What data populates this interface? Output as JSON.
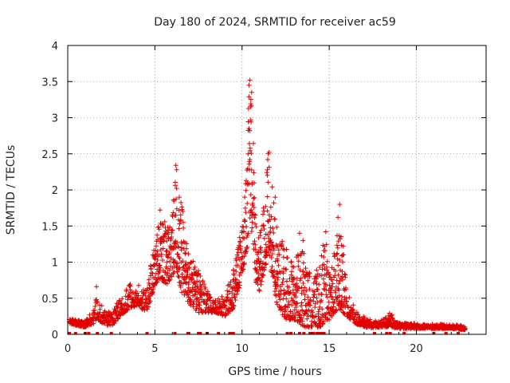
{
  "chart_data": {
    "type": "scatter",
    "title": "Day 180 of 2024, SRMTID for receiver ac59",
    "xlabel": "GPS time / hours",
    "ylabel": "SRMTID / TECUs",
    "xlim": [
      0,
      24
    ],
    "ylim": [
      0,
      4
    ],
    "x_ticks": [
      0,
      5,
      10,
      15,
      20
    ],
    "x_tick_labels": [
      "0",
      "5",
      "10",
      "15",
      "20"
    ],
    "y_ticks": [
      0,
      0.5,
      1,
      1.5,
      2,
      2.5,
      3,
      3.5,
      4
    ],
    "y_tick_labels": [
      "0",
      "0.5",
      "1",
      "1.5",
      "2",
      "2.5",
      "3",
      "3.5",
      "4"
    ],
    "grid": true,
    "marker": "+",
    "color": "#e00000",
    "series": [
      {
        "name": "SRMTID",
        "envelope": [
          [
            0.1,
            0.15,
            0.22
          ],
          [
            0.5,
            0.12,
            0.2
          ],
          [
            1.0,
            0.1,
            0.18
          ],
          [
            1.5,
            0.15,
            0.4
          ],
          [
            1.7,
            0.2,
            0.66
          ],
          [
            2.0,
            0.15,
            0.35
          ],
          [
            2.5,
            0.1,
            0.3
          ],
          [
            3.0,
            0.25,
            0.5
          ],
          [
            3.5,
            0.35,
            0.7
          ],
          [
            4.0,
            0.4,
            0.72
          ],
          [
            4.5,
            0.3,
            0.6
          ],
          [
            4.8,
            0.5,
            1.05
          ],
          [
            5.0,
            0.7,
            1.2
          ],
          [
            5.3,
            0.75,
            1.7
          ],
          [
            5.7,
            0.7,
            1.6
          ],
          [
            6.0,
            0.8,
            1.75
          ],
          [
            6.2,
            0.9,
            2.34
          ],
          [
            6.5,
            0.6,
            1.9
          ],
          [
            7.0,
            0.4,
            1.1
          ],
          [
            7.5,
            0.3,
            0.9
          ],
          [
            8.0,
            0.3,
            0.6
          ],
          [
            8.5,
            0.3,
            0.5
          ],
          [
            9.0,
            0.25,
            0.55
          ],
          [
            9.5,
            0.35,
            0.9
          ],
          [
            10.0,
            0.8,
            1.5
          ],
          [
            10.3,
            1.2,
            2.6
          ],
          [
            10.4,
            1.5,
            3.52
          ],
          [
            10.6,
            1.4,
            3.0
          ],
          [
            10.8,
            0.7,
            1.6
          ],
          [
            11.0,
            0.6,
            1.4
          ],
          [
            11.3,
            0.9,
            1.9
          ],
          [
            11.5,
            1.1,
            2.5
          ],
          [
            11.8,
            0.7,
            1.9
          ],
          [
            12.0,
            0.4,
            1.5
          ],
          [
            12.5,
            0.2,
            1.2
          ],
          [
            13.0,
            0.2,
            1.0
          ],
          [
            13.5,
            0.1,
            1.3
          ],
          [
            14.0,
            0.1,
            0.7
          ],
          [
            14.5,
            0.1,
            1.1
          ],
          [
            14.8,
            0.2,
            1.42
          ],
          [
            15.0,
            0.2,
            0.8
          ],
          [
            15.3,
            0.3,
            1.2
          ],
          [
            15.6,
            0.35,
            1.8
          ],
          [
            16.0,
            0.25,
            0.65
          ],
          [
            16.5,
            0.15,
            0.35
          ],
          [
            17.0,
            0.1,
            0.25
          ],
          [
            17.5,
            0.08,
            0.18
          ],
          [
            18.0,
            0.1,
            0.2
          ],
          [
            18.5,
            0.1,
            0.3
          ],
          [
            19.0,
            0.08,
            0.16
          ],
          [
            20.0,
            0.08,
            0.15
          ],
          [
            21.0,
            0.08,
            0.14
          ],
          [
            22.0,
            0.08,
            0.14
          ],
          [
            22.8,
            0.06,
            0.12
          ]
        ],
        "peaks": [
          [
            1.65,
            0.66
          ],
          [
            6.2,
            2.34
          ],
          [
            6.25,
            2.28
          ],
          [
            10.45,
            3.52
          ],
          [
            10.4,
            3.45
          ],
          [
            10.55,
            3.35
          ],
          [
            10.5,
            3.15
          ],
          [
            10.5,
            2.97
          ],
          [
            10.52,
            2.94
          ],
          [
            10.4,
            2.85
          ],
          [
            10.35,
            2.5
          ],
          [
            10.45,
            2.42
          ],
          [
            11.55,
            2.52
          ],
          [
            11.5,
            2.5
          ],
          [
            11.45,
            2.28
          ],
          [
            15.6,
            1.8
          ],
          [
            15.5,
            1.62
          ],
          [
            14.8,
            1.42
          ],
          [
            13.3,
            1.4
          ],
          [
            13.5,
            1.3
          ],
          [
            6.4,
            1.9
          ],
          [
            11.9,
            1.9
          ],
          [
            5.3,
            1.72
          ]
        ],
        "zero_points": [
          0.1,
          0.45,
          1.0,
          1.2,
          1.7,
          2.5,
          4.55,
          6.15,
          6.9,
          7.5,
          7.6,
          8.0,
          8.65,
          9.3,
          9.35,
          9.5,
          12.6,
          12.8,
          13.3,
          13.55,
          13.9,
          14.0,
          14.1,
          14.3,
          14.45,
          14.6,
          14.7,
          17.6,
          18.3,
          18.5,
          19.3,
          21.0,
          21.7,
          22.4
        ]
      }
    ]
  }
}
